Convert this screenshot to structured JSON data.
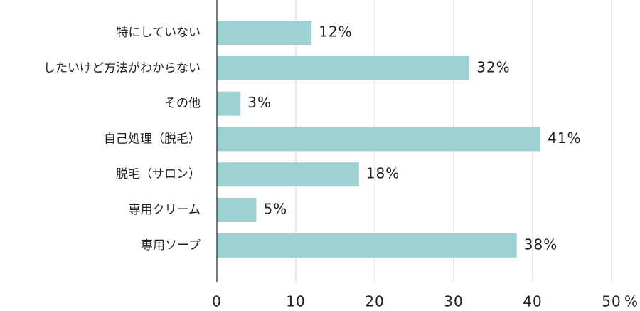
{
  "chart_data": {
    "type": "hbar",
    "categories": [
      "特にしていない",
      "したいけど方法がわからない",
      "その他",
      "自己処理（脱毛）",
      "脱毛（サロン）",
      "専用クリーム",
      "専用ソープ"
    ],
    "values": [
      12,
      32,
      3,
      41,
      18,
      5,
      38
    ],
    "value_labels": [
      "12%",
      "32%",
      "3%",
      "41%",
      "18%",
      "5%",
      "38%"
    ],
    "color": "#9dd1d1",
    "xlabel": "%",
    "xlim": [
      0,
      50
    ],
    "xticks": [
      0,
      10,
      20,
      30,
      40,
      50
    ],
    "grid": true
  }
}
